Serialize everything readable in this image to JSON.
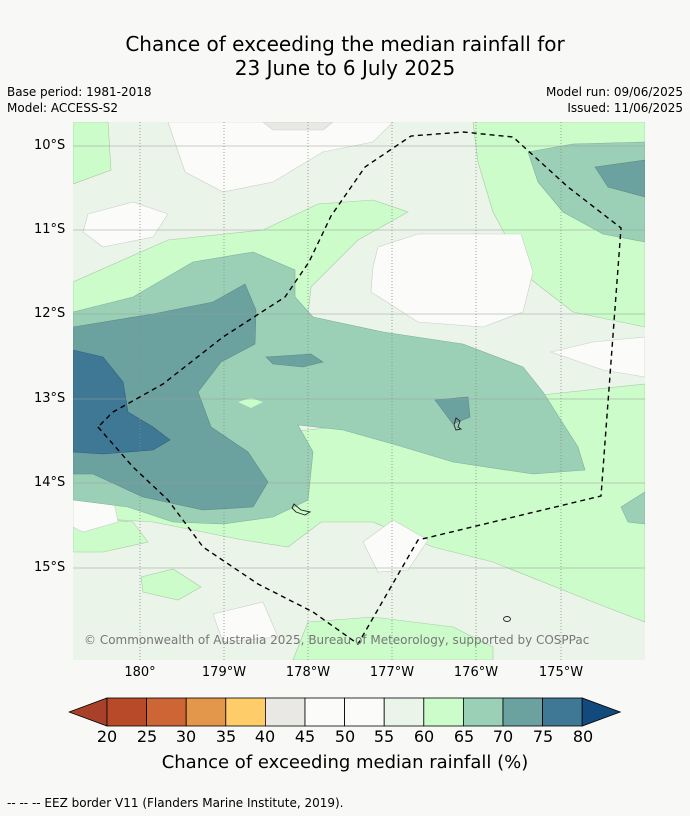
{
  "title_line1": "Chance of exceeding the median rainfall for",
  "title_line2": "23 June to 6 July 2025",
  "base_period": "Base period: 1981-2018",
  "model": "Model: ACCESS-S2",
  "model_run": "Model run: 09/06/2025",
  "issued": "Issued: 11/06/2025",
  "lat_labels": [
    "10°S",
    "11°S",
    "12°S",
    "13°S",
    "14°S",
    "15°S"
  ],
  "lon_labels": [
    "180°",
    "179°W",
    "178°W",
    "177°W",
    "176°W",
    "175°W"
  ],
  "copyright": "© Commonwealth of Australia 2025, Bureau of Meteorology, supported by COSPPac",
  "colorbar": {
    "ticks": [
      "20",
      "25",
      "30",
      "35",
      "40",
      "45",
      "50",
      "55",
      "60",
      "65",
      "70",
      "75",
      "80"
    ],
    "label": "Chance of exceeding median rainfall (%)",
    "colors": [
      "#a8402a",
      "#b84a2a",
      "#cd6535",
      "#e3974a",
      "#fecd6a",
      "#e9e8e4",
      "#fbfcfa",
      "#fbfcfa",
      "#ebf4e9",
      "#cbfcca",
      "#9bd0b6",
      "#6ba2a0",
      "#3f7895",
      "#134a7e"
    ]
  },
  "footnote": "--  --  -- EEZ border V11 (Flanders Marine Institute, 2019)."
}
